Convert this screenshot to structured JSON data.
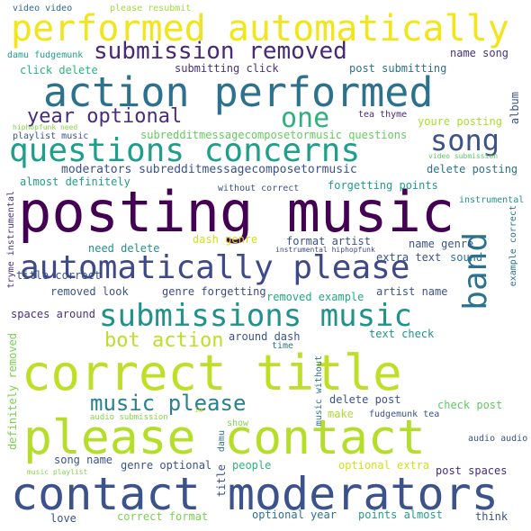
{
  "cloud": {
    "words": [
      {
        "text": "posting music",
        "color": "#440154"
      },
      {
        "text": "correct title",
        "color": "#bddf26"
      },
      {
        "text": "please contact",
        "color": "#b5de2b"
      },
      {
        "text": "contact moderators",
        "color": "#3b528b"
      },
      {
        "text": "action performed",
        "color": "#2c728e"
      },
      {
        "text": "performed automatically",
        "color": "#f1e51d"
      },
      {
        "text": "automatically please",
        "color": "#3e4989"
      },
      {
        "text": "questions concerns",
        "color": "#1f9e89"
      },
      {
        "text": "submissions music",
        "color": "#21918c"
      },
      {
        "text": "submission removed",
        "color": "#482878"
      },
      {
        "text": "year optional",
        "color": "#472d7b"
      },
      {
        "text": "one",
        "color": "#2db27d"
      },
      {
        "text": "song",
        "color": "#3b528b"
      },
      {
        "text": "bot action",
        "color": "#bddf26"
      },
      {
        "text": "music please",
        "color": "#26828e"
      },
      {
        "text": "band",
        "color": "#2c728e"
      },
      {
        "text": "video video",
        "color": "#31688e"
      },
      {
        "text": "please resubmit",
        "color": "#a0da39"
      },
      {
        "text": "damu fudgemunk",
        "color": "#1f9e89"
      },
      {
        "text": "name song",
        "color": "#46327e"
      },
      {
        "text": "submitting click",
        "color": "#46327e"
      },
      {
        "text": "post submitting",
        "color": "#2c728e"
      },
      {
        "text": "click delete",
        "color": "#2db27d"
      },
      {
        "text": "hiphopfunk need",
        "color": "#86d549"
      },
      {
        "text": "playlist music",
        "color": "#3b528b"
      },
      {
        "text": "tea thyme",
        "color": "#482878"
      },
      {
        "text": "youre posting",
        "color": "#addc30"
      },
      {
        "text": "subredditmessagecomposetormusic questions",
        "color": "#65cb5e"
      },
      {
        "text": "moderators subredditmessagecomposetormusic",
        "color": "#3b528b"
      },
      {
        "text": "video submission",
        "color": "#5ec962"
      },
      {
        "text": "delete posting",
        "color": "#2c728e"
      },
      {
        "text": "album",
        "color": "#3b528b"
      },
      {
        "text": "almost definitely",
        "color": "#1f9e89"
      },
      {
        "text": "without correct",
        "color": "#3b528b"
      },
      {
        "text": "forgetting points",
        "color": "#1f9e89"
      },
      {
        "text": "instrumental",
        "color": "#21918c"
      },
      {
        "text": "example correct",
        "color": "#2c728e"
      },
      {
        "text": "dash genre",
        "color": "#d0e11c"
      },
      {
        "text": "need delete",
        "color": "#21918c"
      },
      {
        "text": "format artist",
        "color": "#3b528b"
      },
      {
        "text": "name genre",
        "color": "#3b528b"
      },
      {
        "text": "tryme instrumental",
        "color": "#46327e"
      },
      {
        "text": "instrumental hiphopfunk",
        "color": "#404688"
      },
      {
        "text": "extra text",
        "color": "#3b528b"
      },
      {
        "text": "sound",
        "color": "#2c728e"
      },
      {
        "text": "title correct",
        "color": "#3b528b"
      },
      {
        "text": "removed look",
        "color": "#3b528b"
      },
      {
        "text": "genre forgetting",
        "color": "#3e4989"
      },
      {
        "text": "removed example",
        "color": "#22a884"
      },
      {
        "text": "artist name",
        "color": "#3b528b"
      },
      {
        "text": "spaces around",
        "color": "#46327e"
      },
      {
        "text": "around dash",
        "color": "#3b528b"
      },
      {
        "text": "time",
        "color": "#2c728e"
      },
      {
        "text": "text check",
        "color": "#21918c"
      },
      {
        "text": "definitely removed",
        "color": "#7ad151"
      },
      {
        "text": "delete post",
        "color": "#3b528b"
      },
      {
        "text": "music without",
        "color": "#2c728e"
      },
      {
        "text": "check post",
        "color": "#5ec962"
      },
      {
        "text": "make",
        "color": "#addc30"
      },
      {
        "text": "fudgemunk tea",
        "color": "#3b528b"
      },
      {
        "text": "audio submission",
        "color": "#86d549"
      },
      {
        "text": "im",
        "color": "#bddf26"
      },
      {
        "text": "show",
        "color": "#86d549"
      },
      {
        "text": "damu",
        "color": "#2c728e"
      },
      {
        "text": "title",
        "color": "#3b528b"
      },
      {
        "text": "song name",
        "color": "#3b528b"
      },
      {
        "text": "genre optional",
        "color": "#3b528b"
      },
      {
        "text": "people",
        "color": "#2db27d"
      },
      {
        "text": "optional extra",
        "color": "#d0e11c"
      },
      {
        "text": "audio audio",
        "color": "#3b528b"
      },
      {
        "text": "post spaces",
        "color": "#472d7b"
      },
      {
        "text": "music playlist",
        "color": "#86d549"
      },
      {
        "text": "love",
        "color": "#3b528b"
      },
      {
        "text": "correct format",
        "color": "#7ad151"
      },
      {
        "text": "optional year",
        "color": "#2c728e"
      },
      {
        "text": "points almost",
        "color": "#1f9e89"
      },
      {
        "text": "think",
        "color": "#3b528b"
      }
    ]
  }
}
